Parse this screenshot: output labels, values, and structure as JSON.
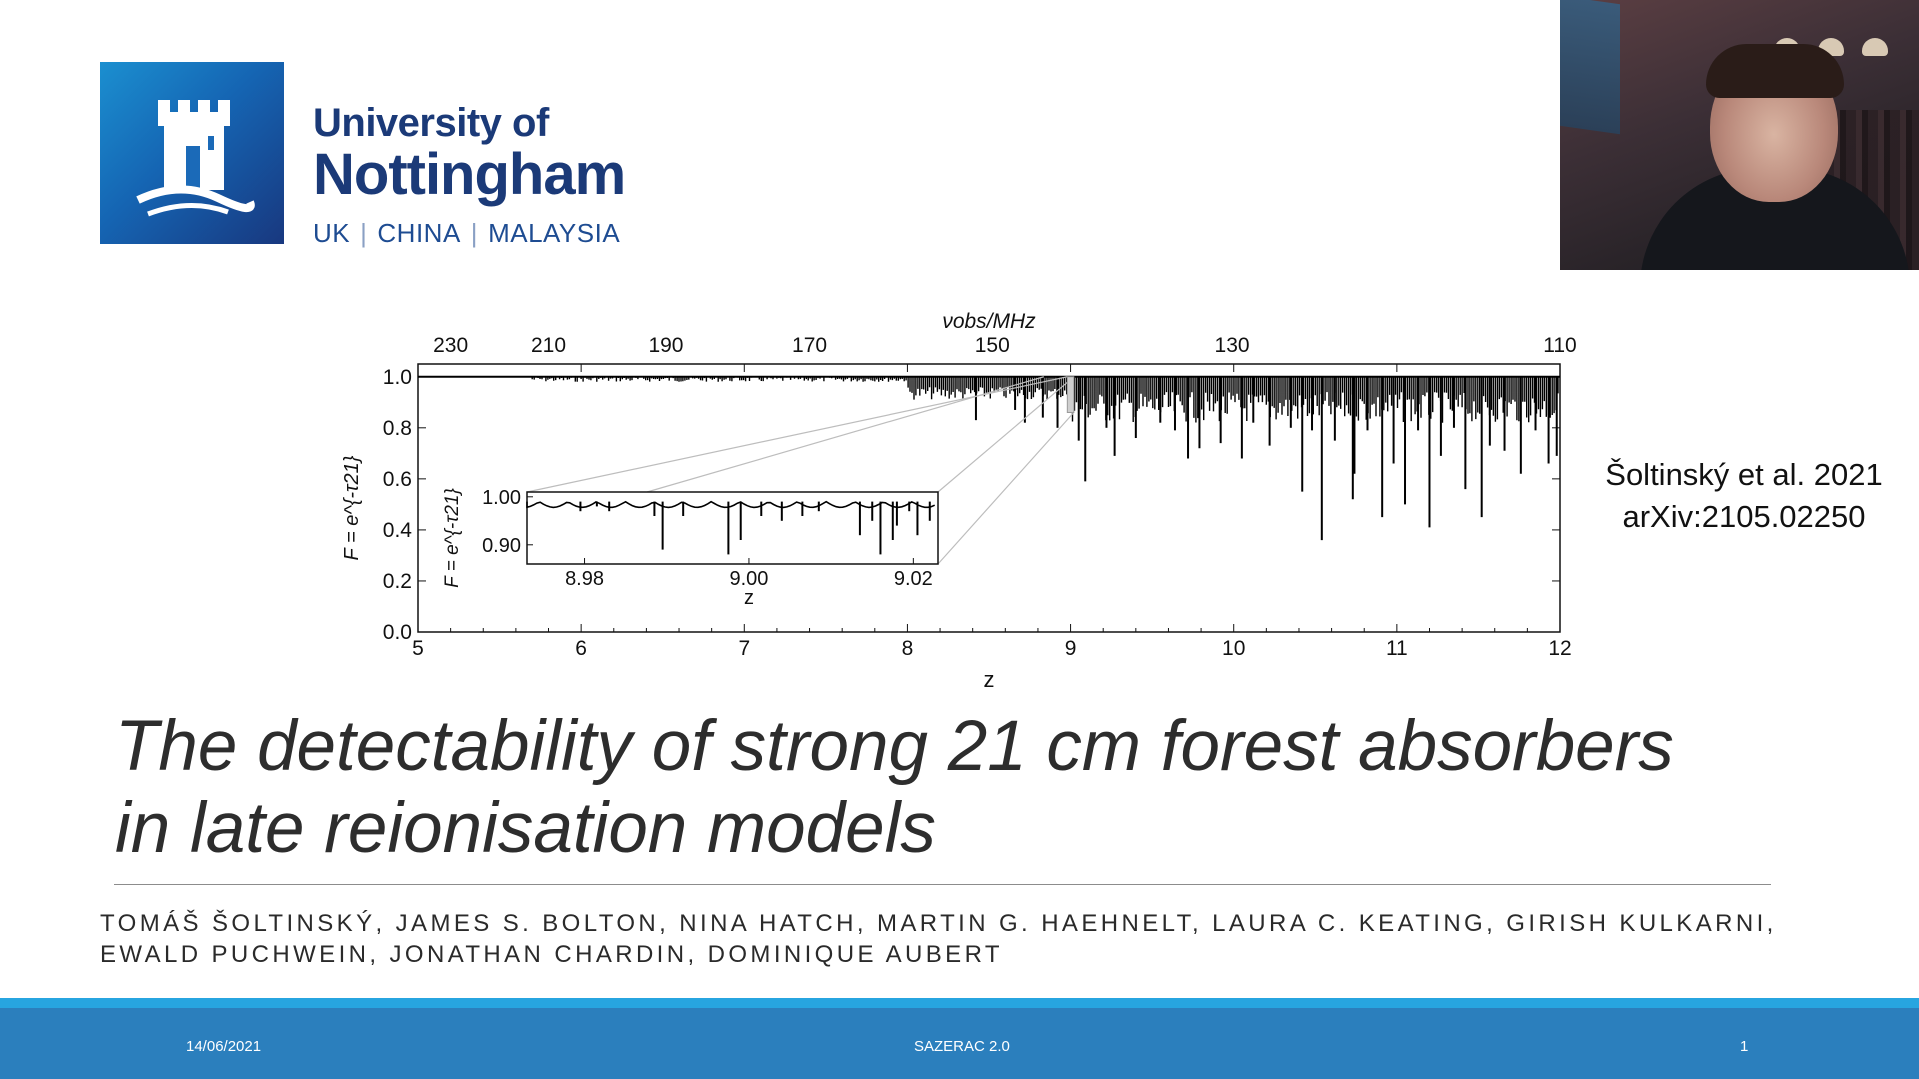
{
  "logo": {
    "line1": "University of",
    "line2": "Nottingham",
    "campuses": [
      "UK",
      "CHINA",
      "MALAYSIA"
    ],
    "icon": "castle-tower-icon",
    "brand_color": "#1b3a78"
  },
  "webcam": {
    "icon": "presenter-video-feed"
  },
  "citation": {
    "line1": "Šoltinský et al. 2021",
    "line2": "arXiv:2105.02250"
  },
  "title": {
    "line1": "The detectability of strong 21 cm forest absorbers",
    "line2": "in late reionisation models"
  },
  "authors": {
    "line1": "TOMÁŠ ŠOLTINSKÝ, JAMES S. BOLTON, NINA HATCH, MARTIN G. HAEHNELT, LAURA C. KEATING, GIRISH KULKARNI,",
    "line2": "EWALD PUCHWEIN, JONATHAN CHARDIN, DOMINIQUE AUBERT"
  },
  "footer": {
    "date": "14/06/2021",
    "conference": "SAZERAC 2.0",
    "page": "1"
  },
  "colors": {
    "footer": "#2b7fbd",
    "footer_stripe": "#27a5e0"
  },
  "chart_data": {
    "type": "line",
    "xlabel": "z",
    "ylabel": "F = e^{-τ21}",
    "top_axis_label": "νobs/MHz",
    "xlim": [
      5,
      12
    ],
    "ylim": [
      0,
      1.05
    ],
    "x_ticks": [
      "5",
      "6",
      "7",
      "8",
      "9",
      "10",
      "11",
      "12"
    ],
    "y_ticks": [
      "0.0",
      "0.2",
      "0.4",
      "0.6",
      "0.8",
      "1.0"
    ],
    "top_ticks": [
      "230",
      "210",
      "190",
      "170",
      "150",
      "130",
      "110"
    ],
    "absorption_lines": [
      {
        "z": 8.42,
        "f": 0.83
      },
      {
        "z": 8.66,
        "f": 0.87
      },
      {
        "z": 8.72,
        "f": 0.82
      },
      {
        "z": 8.83,
        "f": 0.84
      },
      {
        "z": 8.92,
        "f": 0.8
      },
      {
        "z": 9.05,
        "f": 0.75
      },
      {
        "z": 9.09,
        "f": 0.59
      },
      {
        "z": 9.22,
        "f": 0.8
      },
      {
        "z": 9.27,
        "f": 0.69
      },
      {
        "z": 9.4,
        "f": 0.76
      },
      {
        "z": 9.55,
        "f": 0.82
      },
      {
        "z": 9.64,
        "f": 0.79
      },
      {
        "z": 9.72,
        "f": 0.68
      },
      {
        "z": 9.79,
        "f": 0.72
      },
      {
        "z": 9.92,
        "f": 0.74
      },
      {
        "z": 10.05,
        "f": 0.68
      },
      {
        "z": 10.12,
        "f": 0.82
      },
      {
        "z": 10.22,
        "f": 0.73
      },
      {
        "z": 10.35,
        "f": 0.8
      },
      {
        "z": 10.42,
        "f": 0.55
      },
      {
        "z": 10.48,
        "f": 0.79
      },
      {
        "z": 10.54,
        "f": 0.36
      },
      {
        "z": 10.62,
        "f": 0.75
      },
      {
        "z": 10.73,
        "f": 0.52
      },
      {
        "z": 10.74,
        "f": 0.62
      },
      {
        "z": 10.82,
        "f": 0.79
      },
      {
        "z": 10.91,
        "f": 0.45
      },
      {
        "z": 10.98,
        "f": 0.66
      },
      {
        "z": 11.05,
        "f": 0.5
      },
      {
        "z": 11.13,
        "f": 0.79
      },
      {
        "z": 11.2,
        "f": 0.41
      },
      {
        "z": 11.27,
        "f": 0.69
      },
      {
        "z": 11.35,
        "f": 0.8
      },
      {
        "z": 11.42,
        "f": 0.56
      },
      {
        "z": 11.52,
        "f": 0.45
      },
      {
        "z": 11.57,
        "f": 0.73
      },
      {
        "z": 11.66,
        "f": 0.71
      },
      {
        "z": 11.76,
        "f": 0.62
      },
      {
        "z": 11.85,
        "f": 0.79
      },
      {
        "z": 11.93,
        "f": 0.66
      },
      {
        "z": 11.98,
        "f": 0.69
      }
    ],
    "inset": {
      "xlabel": "z",
      "ylabel": "F = e^{-τ21}",
      "xlim": [
        8.973,
        9.023
      ],
      "ylim": [
        0.86,
        1.01
      ],
      "x_ticks": [
        "8.98",
        "9.00",
        "9.02"
      ],
      "y_ticks": [
        "1.00",
        "0.90"
      ],
      "absorption_lines": [
        {
          "z": 8.9795,
          "f": 0.97
        },
        {
          "z": 8.9815,
          "f": 0.98
        },
        {
          "z": 8.983,
          "f": 0.97
        },
        {
          "z": 8.9885,
          "f": 0.96
        },
        {
          "z": 8.9895,
          "f": 0.89
        },
        {
          "z": 8.992,
          "f": 0.96
        },
        {
          "z": 8.9975,
          "f": 0.88
        },
        {
          "z": 8.999,
          "f": 0.91
        },
        {
          "z": 9.0015,
          "f": 0.96
        },
        {
          "z": 9.004,
          "f": 0.95
        },
        {
          "z": 9.0065,
          "f": 0.96
        },
        {
          "z": 9.0085,
          "f": 0.97
        },
        {
          "z": 9.0135,
          "f": 0.92
        },
        {
          "z": 9.015,
          "f": 0.95
        },
        {
          "z": 9.016,
          "f": 0.88
        },
        {
          "z": 9.0175,
          "f": 0.91
        },
        {
          "z": 9.018,
          "f": 0.94
        },
        {
          "z": 9.0195,
          "f": 0.97
        },
        {
          "z": 9.0205,
          "f": 0.92
        },
        {
          "z": 9.022,
          "f": 0.95
        }
      ]
    }
  }
}
